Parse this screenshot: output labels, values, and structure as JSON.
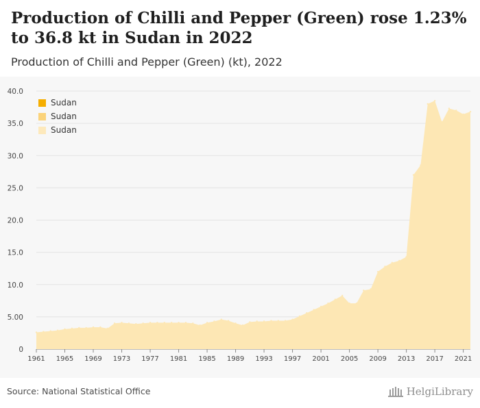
{
  "header": {
    "title": "Production of Chilli and Pepper (Green) rose 1.23% to 36.8 kt in Sudan in 2022",
    "subtitle": "Production of Chilli and Pepper (Green) (kt), 2022"
  },
  "footer": {
    "source": "Source: National Statistical Office",
    "logo_text": "HelgiLibrary"
  },
  "colors": {
    "area_fill": "#fde7b4",
    "legend_1": "#f5ae00",
    "legend_2": "#fbd37a",
    "legend_3": "#fde9bc",
    "grid": "#e3e3e3",
    "axis_text": "#444444",
    "panel": "#f7f7f7"
  },
  "chart_data": {
    "type": "area",
    "title": "",
    "xlabel": "",
    "ylabel": "",
    "ylim": [
      0,
      40
    ],
    "yticks": [
      "0",
      "5.00",
      "10.0",
      "15.0",
      "20.0",
      "25.0",
      "30.0",
      "35.0",
      "40.0"
    ],
    "xticks": [
      "1961",
      "1965",
      "1969",
      "1973",
      "1977",
      "1981",
      "1985",
      "1989",
      "1993",
      "1997",
      "2001",
      "2005",
      "2009",
      "2013",
      "2017",
      "2021"
    ],
    "legend": [
      "Sudan",
      "Sudan",
      "Sudan"
    ],
    "legend_position": "top-left",
    "grid": true,
    "series": [
      {
        "name": "Sudan",
        "x": [
          1961,
          1962,
          1963,
          1964,
          1965,
          1966,
          1967,
          1968,
          1969,
          1970,
          1971,
          1972,
          1973,
          1974,
          1975,
          1976,
          1977,
          1978,
          1979,
          1980,
          1981,
          1982,
          1983,
          1984,
          1985,
          1986,
          1987,
          1988,
          1989,
          1990,
          1991,
          1992,
          1993,
          1994,
          1995,
          1996,
          1997,
          1998,
          1999,
          2000,
          2001,
          2002,
          2003,
          2004,
          2005,
          2006,
          2007,
          2008,
          2009,
          2010,
          2011,
          2012,
          2013,
          2014,
          2015,
          2016,
          2017,
          2018,
          2019,
          2020,
          2021,
          2022
        ],
        "values": [
          2.6,
          2.7,
          2.8,
          2.9,
          3.1,
          3.2,
          3.3,
          3.3,
          3.4,
          3.4,
          3.2,
          4.0,
          4.1,
          4.0,
          3.9,
          4.0,
          4.1,
          4.1,
          4.1,
          4.1,
          4.1,
          4.1,
          4.0,
          3.7,
          4.1,
          4.3,
          4.6,
          4.4,
          4.0,
          3.7,
          4.2,
          4.3,
          4.3,
          4.4,
          4.4,
          4.4,
          4.6,
          5.1,
          5.6,
          6.1,
          6.6,
          7.1,
          7.7,
          8.3,
          7.1,
          7.1,
          9.1,
          9.3,
          12.0,
          12.8,
          13.4,
          13.7,
          14.3,
          27.0,
          28.5,
          38.0,
          38.5,
          35.2,
          37.3,
          37.0,
          36.4,
          36.8
        ]
      }
    ]
  }
}
